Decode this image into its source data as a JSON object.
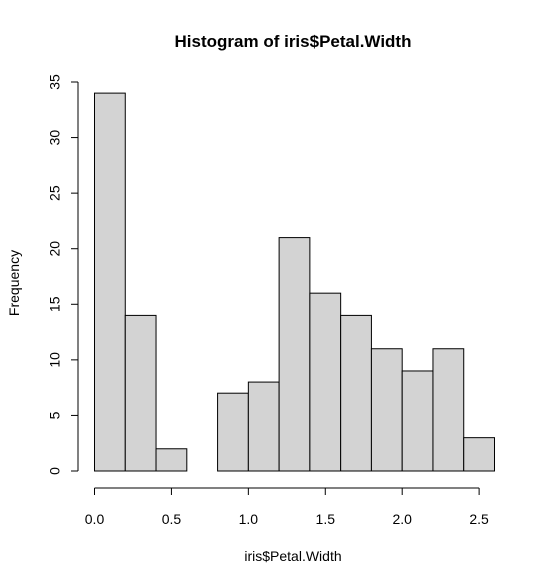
{
  "chart_data": {
    "type": "bar",
    "title": "Histogram of iris$Petal.Width",
    "xlabel": "iris$Petal.Width",
    "ylabel": "Frequency",
    "bins": [
      {
        "start": 0.0,
        "end": 0.2,
        "value": 34
      },
      {
        "start": 0.2,
        "end": 0.4,
        "value": 14
      },
      {
        "start": 0.4,
        "end": 0.6,
        "value": 2
      },
      {
        "start": 0.6,
        "end": 0.8,
        "value": 0
      },
      {
        "start": 0.8,
        "end": 1.0,
        "value": 7
      },
      {
        "start": 1.0,
        "end": 1.2,
        "value": 8
      },
      {
        "start": 1.2,
        "end": 1.4,
        "value": 21
      },
      {
        "start": 1.4,
        "end": 1.6,
        "value": 16
      },
      {
        "start": 1.6,
        "end": 1.8,
        "value": 14
      },
      {
        "start": 1.8,
        "end": 2.0,
        "value": 11
      },
      {
        "start": 2.0,
        "end": 2.2,
        "value": 9
      },
      {
        "start": 2.2,
        "end": 2.4,
        "value": 11
      },
      {
        "start": 2.4,
        "end": 2.6,
        "value": 3
      }
    ],
    "xlim": [
      0.0,
      2.6
    ],
    "ylim": [
      0,
      35
    ],
    "x_ticks": [
      0.0,
      0.5,
      1.0,
      1.5,
      2.0,
      2.5
    ],
    "x_tick_labels": [
      "0.0",
      "0.5",
      "1.0",
      "1.5",
      "2.0",
      "2.5"
    ],
    "y_ticks": [
      0,
      5,
      10,
      15,
      20,
      25,
      30,
      35
    ],
    "y_tick_labels": [
      "0",
      "5",
      "10",
      "15",
      "20",
      "25",
      "30",
      "35"
    ],
    "grid": false,
    "legend": "none",
    "colors": {
      "bar_fill": "#d3d3d3",
      "bar_stroke": "#000000",
      "axis": "#000000",
      "text": "#000000"
    }
  }
}
